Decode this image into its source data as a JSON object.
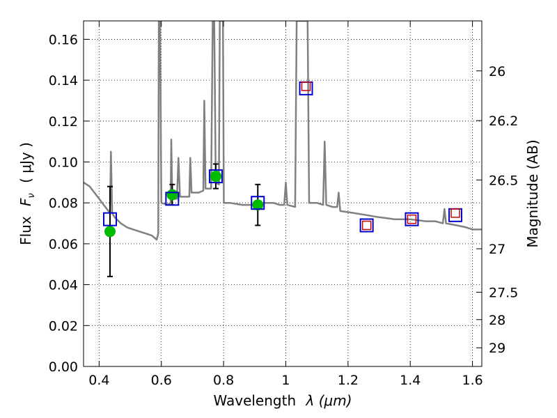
{
  "chart_data": {
    "type": "scatter",
    "xlabel_text": "Wavelength",
    "xlabel_math": "λ (μm)",
    "ylabel_text": "Flux",
    "ylabel_math": "F",
    "ylabel_sub": "ν",
    "ylabel_units": "( μJy )",
    "y2label": "Magnitude (AB)",
    "xlim": [
      0.35,
      1.63
    ],
    "ylim": [
      0.0,
      0.169
    ],
    "grid": true,
    "x_ticks": [
      0.4,
      0.6,
      0.8,
      1.0,
      1.2,
      1.4,
      1.6
    ],
    "x_tick_labels": [
      "0.4",
      "0.6",
      "0.8",
      "1",
      "1.2",
      "1.4",
      "1.6"
    ],
    "y_ticks": [
      0.0,
      0.02,
      0.04,
      0.06,
      0.08,
      0.1,
      0.12,
      0.14,
      0.16
    ],
    "y_tick_labels": [
      "0.00",
      "0.02",
      "0.04",
      "0.06",
      "0.08",
      "0.10",
      "0.12",
      "0.14",
      "0.16"
    ],
    "y2_ticks": [
      26,
      26.2,
      26.5,
      27,
      27.5,
      28,
      29
    ],
    "y2_tick_labels": [
      "26",
      "26.2",
      "26.5",
      "27",
      "27.5",
      "28",
      "29"
    ],
    "colors": {
      "model": "#808080",
      "observed": "#00bb00",
      "model_photometry": "#0000cc",
      "upper_limit": "#cc0000",
      "errorbar": "#000000"
    },
    "model_spectrum": [
      [
        0.35,
        0.09
      ],
      [
        0.36,
        0.089
      ],
      [
        0.37,
        0.088
      ],
      [
        0.38,
        0.086
      ],
      [
        0.39,
        0.084
      ],
      [
        0.4,
        0.082
      ],
      [
        0.41,
        0.08
      ],
      [
        0.42,
        0.078
      ],
      [
        0.43,
        0.076
      ],
      [
        0.435,
        0.075
      ],
      [
        0.438,
        0.105
      ],
      [
        0.442,
        0.075
      ],
      [
        0.45,
        0.073
      ],
      [
        0.47,
        0.07
      ],
      [
        0.49,
        0.068
      ],
      [
        0.51,
        0.067
      ],
      [
        0.53,
        0.066
      ],
      [
        0.55,
        0.065
      ],
      [
        0.57,
        0.064
      ],
      [
        0.585,
        0.062
      ],
      [
        0.59,
        0.065
      ],
      [
        0.592,
        0.169
      ],
      [
        0.596,
        0.169
      ],
      [
        0.6,
        0.08
      ],
      [
        0.62,
        0.079
      ],
      [
        0.63,
        0.08
      ],
      [
        0.632,
        0.111
      ],
      [
        0.635,
        0.082
      ],
      [
        0.65,
        0.082
      ],
      [
        0.655,
        0.102
      ],
      [
        0.66,
        0.083
      ],
      [
        0.68,
        0.083
      ],
      [
        0.69,
        0.083
      ],
      [
        0.693,
        0.102
      ],
      [
        0.697,
        0.085
      ],
      [
        0.72,
        0.085
      ],
      [
        0.735,
        0.086
      ],
      [
        0.738,
        0.13
      ],
      [
        0.742,
        0.087
      ],
      [
        0.76,
        0.087
      ],
      [
        0.765,
        0.169
      ],
      [
        0.77,
        0.169
      ],
      [
        0.775,
        0.09
      ],
      [
        0.785,
        0.089
      ],
      [
        0.788,
        0.169
      ],
      [
        0.798,
        0.169
      ],
      [
        0.801,
        0.08
      ],
      [
        0.82,
        0.08
      ],
      [
        0.86,
        0.079
      ],
      [
        0.9,
        0.079
      ],
      [
        0.93,
        0.08
      ],
      [
        0.96,
        0.08
      ],
      [
        0.98,
        0.079
      ],
      [
        0.995,
        0.079
      ],
      [
        1.0,
        0.09
      ],
      [
        1.005,
        0.079
      ],
      [
        1.03,
        0.078
      ],
      [
        1.035,
        0.169
      ],
      [
        1.07,
        0.169
      ],
      [
        1.075,
        0.08
      ],
      [
        1.1,
        0.08
      ],
      [
        1.12,
        0.079
      ],
      [
        1.125,
        0.11
      ],
      [
        1.13,
        0.079
      ],
      [
        1.15,
        0.078
      ],
      [
        1.165,
        0.078
      ],
      [
        1.17,
        0.085
      ],
      [
        1.175,
        0.076
      ],
      [
        1.22,
        0.075
      ],
      [
        1.26,
        0.074
      ],
      [
        1.3,
        0.073
      ],
      [
        1.35,
        0.072
      ],
      [
        1.4,
        0.072
      ],
      [
        1.45,
        0.071
      ],
      [
        1.48,
        0.071
      ],
      [
        1.505,
        0.07
      ],
      [
        1.51,
        0.077
      ],
      [
        1.515,
        0.07
      ],
      [
        1.55,
        0.069
      ],
      [
        1.58,
        0.068
      ],
      [
        1.6,
        0.067
      ],
      [
        1.63,
        0.067
      ]
    ],
    "observed_points": [
      {
        "x": 0.435,
        "y": 0.066,
        "err": 0.022
      },
      {
        "x": 0.635,
        "y": 0.084,
        "err": 0.005
      },
      {
        "x": 0.775,
        "y": 0.093,
        "err": 0.006
      },
      {
        "x": 0.91,
        "y": 0.079,
        "err": 0.01
      }
    ],
    "model_photometry": [
      {
        "x": 0.435,
        "y": 0.072
      },
      {
        "x": 0.635,
        "y": 0.082
      },
      {
        "x": 0.775,
        "y": 0.093
      },
      {
        "x": 0.91,
        "y": 0.08
      },
      {
        "x": 1.065,
        "y": 0.136
      },
      {
        "x": 1.26,
        "y": 0.069
      },
      {
        "x": 1.405,
        "y": 0.072
      },
      {
        "x": 1.545,
        "y": 0.074
      }
    ],
    "upper_limit_points": [
      {
        "x": 1.065,
        "y": 0.137
      },
      {
        "x": 1.26,
        "y": 0.069
      },
      {
        "x": 1.405,
        "y": 0.072
      },
      {
        "x": 1.545,
        "y": 0.075
      }
    ]
  }
}
